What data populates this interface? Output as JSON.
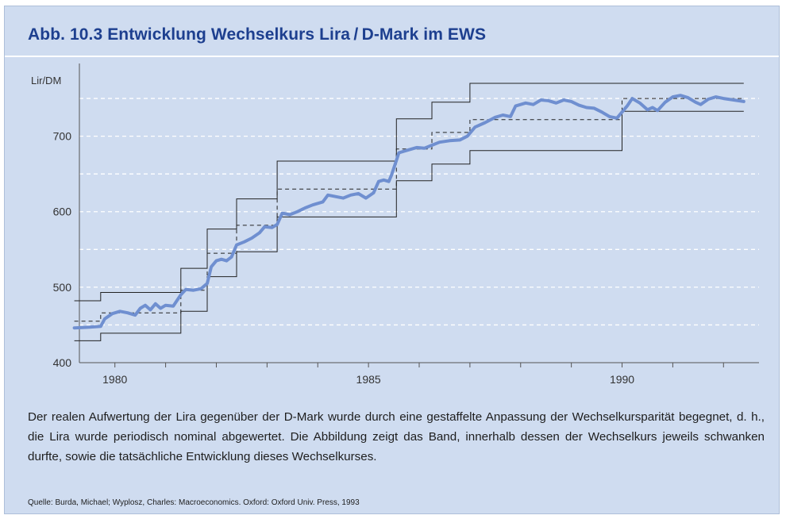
{
  "figure": {
    "title": "Abb. 10.3  Entwicklung Wechselkurs Lira / D-Mark im EWS",
    "caption": "Der realen Aufwertung der Lira gegenüber der D-Mark wurde durch eine gestaffelte Anpassung der Wechselkursparität begegnet, d. h., die Lira wurde periodisch nominal abgewertet. Die Abbildung zeigt das Band, innerhalb dessen der Wechselkurs jeweils schwanken durfte, sowie die tatsächliche Entwicklung dieses Wechselkurses.",
    "source": "Quelle: Burda, Michael; Wyplosz, Charles: Macroeconomics. Oxford: Oxford Univ. Press, 1993"
  },
  "colors": {
    "panel_bg": "#cfdcf0",
    "title": "#1d3f8f",
    "actual_line": "#6f8fd0",
    "band_line": "#222222",
    "grid": "#ffffff"
  },
  "chart_data": {
    "type": "line",
    "title": "",
    "xlabel": "",
    "ylabel": "Lir/DM",
    "xlim": [
      1979.3,
      1992.7
    ],
    "ylim": [
      400,
      790
    ],
    "x_ticks": [
      1980,
      1985,
      1990
    ],
    "y_ticks": [
      400,
      500,
      600,
      700
    ],
    "grid": true,
    "legend": "none",
    "series": [
      {
        "key": "upper",
        "style": "band",
        "points": [
          [
            1979.2,
            482
          ],
          [
            1979.72,
            482
          ],
          [
            1979.72,
            493
          ],
          [
            1981.3,
            493
          ],
          [
            1981.3,
            525
          ],
          [
            1981.82,
            525
          ],
          [
            1981.82,
            577
          ],
          [
            1982.4,
            577
          ],
          [
            1982.4,
            617
          ],
          [
            1983.2,
            617
          ],
          [
            1983.2,
            667
          ],
          [
            1985.55,
            667
          ],
          [
            1985.55,
            723
          ],
          [
            1986.25,
            723
          ],
          [
            1986.25,
            745
          ],
          [
            1987.0,
            745
          ],
          [
            1987.0,
            770
          ],
          [
            1992.4,
            770
          ]
        ]
      },
      {
        "key": "lower",
        "style": "band",
        "points": [
          [
            1979.2,
            429
          ],
          [
            1979.72,
            429
          ],
          [
            1979.72,
            439
          ],
          [
            1981.3,
            439
          ],
          [
            1981.3,
            468
          ],
          [
            1981.82,
            468
          ],
          [
            1981.82,
            514
          ],
          [
            1982.4,
            514
          ],
          [
            1982.4,
            547
          ],
          [
            1983.2,
            547
          ],
          [
            1983.2,
            593
          ],
          [
            1985.55,
            593
          ],
          [
            1985.55,
            641
          ],
          [
            1986.25,
            641
          ],
          [
            1986.25,
            663
          ],
          [
            1987.0,
            663
          ],
          [
            1987.0,
            681
          ],
          [
            1990.0,
            681
          ],
          [
            1990.0,
            733
          ],
          [
            1992.4,
            733
          ]
        ]
      },
      {
        "key": "central",
        "style": "dashed",
        "points": [
          [
            1979.2,
            455
          ],
          [
            1979.72,
            455
          ],
          [
            1979.72,
            466
          ],
          [
            1981.3,
            466
          ],
          [
            1981.3,
            496
          ],
          [
            1981.82,
            496
          ],
          [
            1981.82,
            545
          ],
          [
            1982.4,
            545
          ],
          [
            1982.4,
            582
          ],
          [
            1983.2,
            582
          ],
          [
            1983.2,
            630
          ],
          [
            1985.55,
            630
          ],
          [
            1985.55,
            683
          ],
          [
            1986.25,
            683
          ],
          [
            1986.25,
            705
          ],
          [
            1987.0,
            705
          ],
          [
            1987.0,
            722
          ],
          [
            1990.0,
            722
          ],
          [
            1990.0,
            750
          ],
          [
            1992.4,
            750
          ]
        ]
      },
      {
        "key": "actual",
        "style": "actual",
        "points": [
          [
            1979.2,
            446
          ],
          [
            1979.5,
            447
          ],
          [
            1979.72,
            448
          ],
          [
            1979.8,
            458
          ],
          [
            1979.95,
            465
          ],
          [
            1980.1,
            468
          ],
          [
            1980.25,
            466
          ],
          [
            1980.4,
            463
          ],
          [
            1980.5,
            472
          ],
          [
            1980.6,
            476
          ],
          [
            1980.7,
            470
          ],
          [
            1980.8,
            478
          ],
          [
            1980.9,
            472
          ],
          [
            1981.0,
            476
          ],
          [
            1981.15,
            475
          ],
          [
            1981.3,
            490
          ],
          [
            1981.4,
            497
          ],
          [
            1981.55,
            496
          ],
          [
            1981.7,
            498
          ],
          [
            1981.82,
            505
          ],
          [
            1981.9,
            527
          ],
          [
            1982.0,
            535
          ],
          [
            1982.1,
            537
          ],
          [
            1982.2,
            535
          ],
          [
            1982.3,
            540
          ],
          [
            1982.4,
            556
          ],
          [
            1982.55,
            560
          ],
          [
            1982.7,
            565
          ],
          [
            1982.85,
            572
          ],
          [
            1982.95,
            580
          ],
          [
            1983.1,
            579
          ],
          [
            1983.2,
            583
          ],
          [
            1983.3,
            598
          ],
          [
            1983.45,
            596
          ],
          [
            1983.6,
            600
          ],
          [
            1983.75,
            605
          ],
          [
            1983.9,
            609
          ],
          [
            1984.1,
            613
          ],
          [
            1984.2,
            622
          ],
          [
            1984.35,
            620
          ],
          [
            1984.5,
            618
          ],
          [
            1984.65,
            622
          ],
          [
            1984.8,
            624
          ],
          [
            1984.95,
            618
          ],
          [
            1985.1,
            625
          ],
          [
            1985.2,
            640
          ],
          [
            1985.3,
            642
          ],
          [
            1985.4,
            640
          ],
          [
            1985.45,
            648
          ],
          [
            1985.55,
            668
          ],
          [
            1985.6,
            678
          ],
          [
            1985.8,
            682
          ],
          [
            1985.95,
            685
          ],
          [
            1986.1,
            684
          ],
          [
            1986.25,
            688
          ],
          [
            1986.4,
            692
          ],
          [
            1986.6,
            694
          ],
          [
            1986.8,
            695
          ],
          [
            1986.95,
            700
          ],
          [
            1987.1,
            712
          ],
          [
            1987.3,
            718
          ],
          [
            1987.5,
            725
          ],
          [
            1987.65,
            728
          ],
          [
            1987.8,
            726
          ],
          [
            1987.9,
            740
          ],
          [
            1988.1,
            744
          ],
          [
            1988.25,
            742
          ],
          [
            1988.4,
            748
          ],
          [
            1988.55,
            747
          ],
          [
            1988.7,
            744
          ],
          [
            1988.85,
            748
          ],
          [
            1989.0,
            746
          ],
          [
            1989.15,
            741
          ],
          [
            1989.3,
            738
          ],
          [
            1989.45,
            737
          ],
          [
            1989.6,
            732
          ],
          [
            1989.75,
            726
          ],
          [
            1989.9,
            724
          ],
          [
            1990.0,
            732
          ],
          [
            1990.1,
            740
          ],
          [
            1990.2,
            750
          ],
          [
            1990.35,
            744
          ],
          [
            1990.5,
            735
          ],
          [
            1990.6,
            738
          ],
          [
            1990.7,
            734
          ],
          [
            1990.85,
            745
          ],
          [
            1991.0,
            752
          ],
          [
            1991.15,
            754
          ],
          [
            1991.3,
            751
          ],
          [
            1991.45,
            745
          ],
          [
            1991.55,
            742
          ],
          [
            1991.7,
            749
          ],
          [
            1991.85,
            752
          ],
          [
            1992.0,
            750
          ],
          [
            1992.2,
            748
          ],
          [
            1992.4,
            746
          ]
        ]
      }
    ]
  }
}
